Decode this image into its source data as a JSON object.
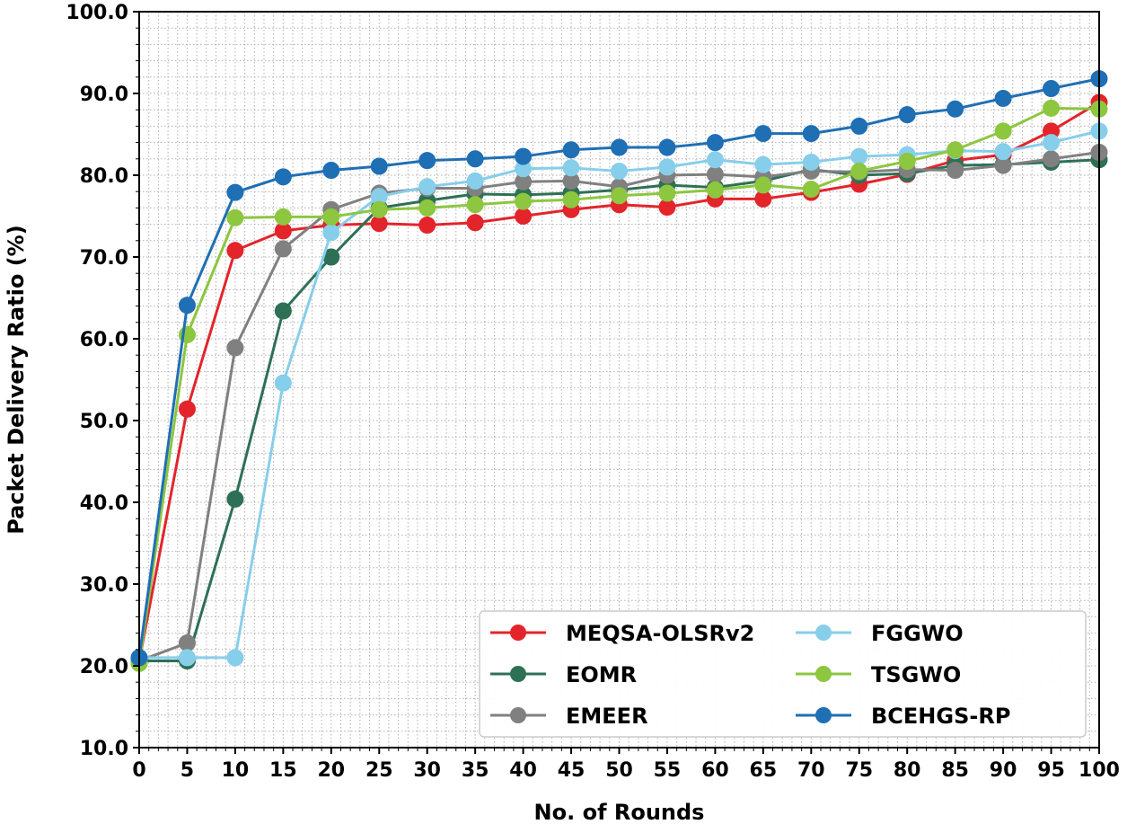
{
  "chart_data": {
    "type": "line",
    "title": "",
    "xlabel": "No. of Rounds",
    "ylabel": "Packet Delivery Ratio (%)",
    "xlim": [
      0,
      100
    ],
    "ylim": [
      10,
      100
    ],
    "xticks": [
      0,
      5,
      10,
      15,
      20,
      25,
      30,
      35,
      40,
      45,
      50,
      55,
      60,
      65,
      70,
      75,
      80,
      85,
      90,
      95,
      100
    ],
    "xtick_labels": [
      "0",
      "5",
      "10",
      "15",
      "20",
      "25",
      "30",
      "35",
      "40",
      "45",
      "50",
      "55",
      "60",
      "65",
      "70",
      "75",
      "80",
      "85",
      "90",
      "95",
      "100"
    ],
    "yticks": [
      10,
      20,
      30,
      40,
      50,
      60,
      70,
      80,
      90,
      100
    ],
    "ytick_labels": [
      "10.0",
      "20.0",
      "30.0",
      "40.0",
      "50.0",
      "60.0",
      "70.0",
      "80.0",
      "90.0",
      "100.0"
    ],
    "grid": true,
    "legend_position": "bottom-right",
    "x": [
      0,
      5,
      10,
      15,
      20,
      25,
      30,
      35,
      40,
      45,
      50,
      55,
      60,
      65,
      70,
      75,
      80,
      85,
      90,
      95,
      100
    ],
    "series": [
      {
        "name": "MEQSA-OLSRv2",
        "color": "#e3242b",
        "values": [
          20.6,
          51.4,
          70.8,
          73.2,
          73.9,
          74.1,
          73.9,
          74.2,
          75.0,
          75.8,
          76.4,
          76.1,
          77.1,
          77.1,
          77.9,
          78.9,
          80.1,
          81.8,
          82.5,
          85.4,
          88.9
        ]
      },
      {
        "name": "EOMR",
        "color": "#2e7055",
        "values": [
          20.6,
          20.6,
          40.4,
          63.4,
          70.0,
          76.0,
          76.9,
          77.7,
          77.6,
          77.8,
          78.2,
          78.8,
          78.5,
          79.3,
          80.7,
          80.0,
          80.2,
          81.2,
          81.3,
          81.6,
          81.9
        ]
      },
      {
        "name": "EMEER",
        "color": "#808080",
        "values": [
          20.6,
          22.8,
          58.9,
          71.0,
          75.8,
          77.8,
          78.4,
          78.4,
          79.2,
          79.3,
          78.6,
          80.0,
          80.1,
          79.8,
          80.5,
          80.4,
          80.7,
          80.6,
          81.2,
          82.0,
          82.8
        ]
      },
      {
        "name": "FGGWO",
        "color": "#87ceeb",
        "values": [
          21.0,
          21.0,
          21.0,
          54.6,
          73.0,
          77.4,
          78.6,
          79.3,
          80.8,
          80.9,
          80.5,
          81.0,
          81.9,
          81.3,
          81.6,
          82.3,
          82.5,
          83.0,
          82.9,
          84.0,
          85.4
        ]
      },
      {
        "name": "TSGWO",
        "color": "#8dc63f",
        "values": [
          20.3,
          60.5,
          74.8,
          74.9,
          74.9,
          75.8,
          76.0,
          76.4,
          76.8,
          77.0,
          77.5,
          77.8,
          78.2,
          78.8,
          78.3,
          80.5,
          81.7,
          83.1,
          85.4,
          88.2,
          88.1
        ]
      },
      {
        "name": "BCEHGS-RP",
        "color": "#1f6fb4",
        "values": [
          21.0,
          64.1,
          77.9,
          79.8,
          80.6,
          81.1,
          81.8,
          82.0,
          82.3,
          83.1,
          83.4,
          83.4,
          84.0,
          85.1,
          85.1,
          86.0,
          87.4,
          88.1,
          89.4,
          90.6,
          91.8
        ]
      }
    ]
  }
}
